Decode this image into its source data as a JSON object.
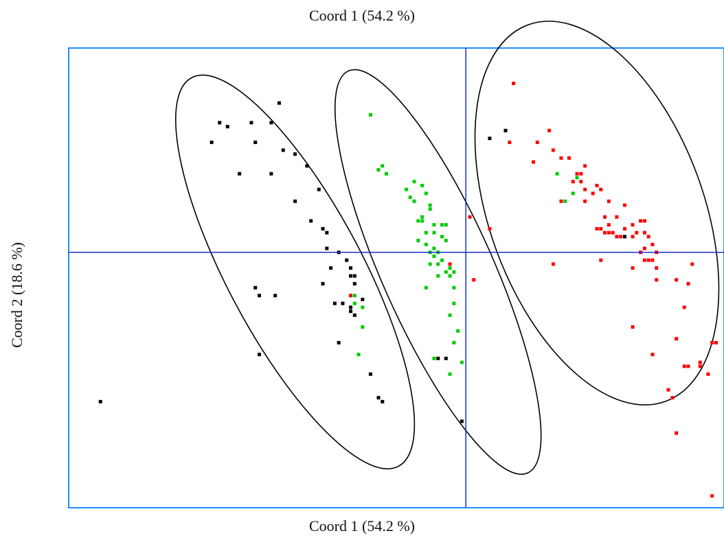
{
  "header": {
    "title": "Coord 1 (54.2 %)"
  },
  "chart_data": {
    "type": "scatter",
    "title": "Coord 1 (54.2 %)",
    "xlabel": "Coord 1 (54.2 %)",
    "ylabel": "Coord 2 (18.6 %)",
    "xlim": [
      -1.0,
      0.65
    ],
    "ylim": [
      -0.65,
      0.52
    ],
    "grid": false,
    "reference_lines": {
      "x": 0,
      "y": 0
    },
    "series": [
      {
        "color": "#000000",
        "points": [
          [
            -0.92,
            -0.38
          ],
          [
            -0.62,
            0.33
          ],
          [
            -0.64,
            0.28
          ],
          [
            -0.6,
            0.32
          ],
          [
            -0.54,
            0.33
          ],
          [
            -0.53,
            0.28
          ],
          [
            -0.57,
            0.2
          ],
          [
            -0.49,
            0.33
          ],
          [
            -0.49,
            0.2
          ],
          [
            -0.47,
            0.38
          ],
          [
            -0.46,
            0.26
          ],
          [
            -0.43,
            0.25
          ],
          [
            -0.4,
            0.22
          ],
          [
            -0.43,
            0.13
          ],
          [
            -0.37,
            0.16
          ],
          [
            -0.39,
            0.08
          ],
          [
            -0.36,
            0.06
          ],
          [
            -0.35,
            0.05
          ],
          [
            -0.35,
            0.01
          ],
          [
            -0.34,
            -0.04
          ],
          [
            -0.32,
            0.0
          ],
          [
            -0.3,
            -0.02
          ],
          [
            -0.29,
            -0.04
          ],
          [
            -0.29,
            -0.06
          ],
          [
            -0.28,
            -0.08
          ],
          [
            -0.28,
            -0.06
          ],
          [
            -0.36,
            -0.08
          ],
          [
            -0.53,
            -0.09
          ],
          [
            -0.52,
            -0.11
          ],
          [
            -0.48,
            -0.11
          ],
          [
            -0.33,
            -0.13
          ],
          [
            -0.31,
            -0.13
          ],
          [
            -0.29,
            -0.14
          ],
          [
            -0.29,
            -0.15
          ],
          [
            -0.28,
            -0.16
          ],
          [
            -0.26,
            -0.12
          ],
          [
            -0.32,
            -0.23
          ],
          [
            -0.52,
            -0.26
          ],
          [
            -0.24,
            -0.31
          ],
          [
            -0.22,
            -0.37
          ],
          [
            -0.21,
            -0.38
          ],
          [
            -0.07,
            -0.27
          ],
          [
            -0.05,
            -0.27
          ],
          [
            -0.01,
            -0.43
          ],
          [
            0.06,
            0.29
          ],
          [
            0.1,
            0.31
          ],
          [
            0.4,
            0.04
          ]
        ]
      },
      {
        "color": "#00cc00",
        "points": [
          [
            -0.24,
            0.35
          ],
          [
            -0.21,
            0.22
          ],
          [
            -0.22,
            0.21
          ],
          [
            -0.2,
            0.2
          ],
          [
            -0.14,
            0.14
          ],
          [
            -0.13,
            0.13
          ],
          [
            -0.11,
            0.09
          ],
          [
            -0.1,
            0.15
          ],
          [
            -0.09,
            0.12
          ],
          [
            -0.11,
            0.08
          ],
          [
            -0.1,
            0.05
          ],
          [
            -0.08,
            0.07
          ],
          [
            -0.12,
            0.03
          ],
          [
            -0.1,
            0.02
          ],
          [
            -0.09,
            0.0
          ],
          [
            -0.08,
            0.01
          ],
          [
            -0.07,
            0.0
          ],
          [
            -0.08,
            -0.01
          ],
          [
            -0.09,
            -0.03
          ],
          [
            -0.07,
            -0.03
          ],
          [
            -0.06,
            -0.02
          ],
          [
            -0.06,
            0.04
          ],
          [
            -0.05,
            0.03
          ],
          [
            -0.04,
            -0.04
          ],
          [
            -0.05,
            -0.05
          ],
          [
            -0.04,
            -0.06
          ],
          [
            -0.03,
            -0.05
          ],
          [
            -0.07,
            -0.06
          ],
          [
            -0.08,
            0.05
          ],
          [
            -0.09,
            0.11
          ],
          [
            -0.11,
            0.17
          ],
          [
            -0.13,
            0.18
          ],
          [
            -0.15,
            0.16
          ],
          [
            -0.05,
            0.07
          ],
          [
            -0.1,
            -0.09
          ],
          [
            -0.03,
            -0.09
          ],
          [
            -0.03,
            -0.13
          ],
          [
            -0.04,
            -0.16
          ],
          [
            -0.02,
            -0.2
          ],
          [
            -0.03,
            -0.23
          ],
          [
            -0.01,
            -0.28
          ],
          [
            -0.04,
            -0.31
          ],
          [
            -0.08,
            -0.27
          ],
          [
            -0.28,
            -0.11
          ],
          [
            -0.28,
            -0.13
          ],
          [
            -0.26,
            -0.14
          ],
          [
            -0.26,
            -0.19
          ],
          [
            -0.27,
            -0.26
          ],
          [
            0.23,
            0.2
          ],
          [
            0.28,
            0.19
          ],
          [
            0.27,
            0.15
          ],
          [
            0.25,
            0.13
          ],
          [
            -0.12,
            0.08
          ],
          [
            -0.06,
            0.07
          ]
        ]
      },
      {
        "color": "#ff0000",
        "points": [
          [
            -0.04,
            -0.03
          ],
          [
            -0.29,
            -0.11
          ],
          [
            0.02,
            -0.07
          ],
          [
            0.01,
            0.09
          ],
          [
            0.06,
            0.06
          ],
          [
            0.11,
            0.28
          ],
          [
            0.18,
            0.28
          ],
          [
            0.21,
            0.31
          ],
          [
            0.22,
            0.26
          ],
          [
            0.24,
            0.24
          ],
          [
            0.26,
            0.24
          ],
          [
            0.28,
            0.2
          ],
          [
            0.27,
            0.18
          ],
          [
            0.3,
            0.16
          ],
          [
            0.3,
            0.13
          ],
          [
            0.29,
            0.18
          ],
          [
            0.32,
            0.15
          ],
          [
            0.33,
            0.17
          ],
          [
            0.34,
            0.16
          ],
          [
            0.36,
            0.13
          ],
          [
            0.35,
            0.09
          ],
          [
            0.36,
            0.07
          ],
          [
            0.33,
            0.06
          ],
          [
            0.34,
            0.06
          ],
          [
            0.35,
            0.05
          ],
          [
            0.36,
            0.05
          ],
          [
            0.37,
            0.05
          ],
          [
            0.38,
            0.04
          ],
          [
            0.39,
            0.04
          ],
          [
            0.4,
            0.06
          ],
          [
            0.42,
            0.07
          ],
          [
            0.43,
            0.05
          ],
          [
            0.44,
            0.08
          ],
          [
            0.45,
            0.08
          ],
          [
            0.45,
            0.05
          ],
          [
            0.46,
            0.04
          ],
          [
            0.38,
            0.09
          ],
          [
            0.4,
            0.12
          ],
          [
            0.42,
            0.04
          ],
          [
            0.45,
            0.01
          ],
          [
            0.44,
            0.0
          ],
          [
            0.47,
            0.02
          ],
          [
            0.48,
            0.0
          ],
          [
            0.47,
            -0.02
          ],
          [
            0.45,
            -0.02
          ],
          [
            0.46,
            -0.02
          ],
          [
            0.48,
            -0.04
          ],
          [
            0.42,
            -0.04
          ],
          [
            0.48,
            -0.07
          ],
          [
            0.53,
            -0.07
          ],
          [
            0.56,
            -0.08
          ],
          [
            0.57,
            -0.03
          ],
          [
            0.55,
            -0.14
          ],
          [
            0.53,
            -0.22
          ],
          [
            0.47,
            -0.26
          ],
          [
            0.42,
            -0.19
          ],
          [
            0.34,
            -0.02
          ],
          [
            0.22,
            -0.03
          ],
          [
            0.51,
            -0.35
          ],
          [
            0.59,
            -0.28
          ],
          [
            0.59,
            -0.29
          ],
          [
            0.61,
            -0.31
          ],
          [
            0.55,
            -0.29
          ],
          [
            0.56,
            -0.29
          ],
          [
            0.52,
            -0.37
          ],
          [
            0.63,
            -0.23
          ],
          [
            0.62,
            -0.23
          ],
          [
            0.53,
            -0.46
          ],
          [
            0.62,
            -0.62
          ],
          [
            0.12,
            0.43
          ],
          [
            0.29,
            0.2
          ],
          [
            0.3,
            0.22
          ],
          [
            0.17,
            0.23
          ],
          [
            0.24,
            0.13
          ]
        ]
      }
    ],
    "ellipses": [
      {
        "color": "#000000",
        "cx": -0.43,
        "cy": -0.05,
        "rx": 0.17,
        "ry": 0.56,
        "angle_deg": -28
      },
      {
        "color": "#000000",
        "cx": -0.07,
        "cy": -0.05,
        "rx": 0.14,
        "ry": 0.56,
        "angle_deg": -24
      },
      {
        "color": "#000000",
        "cx": 0.33,
        "cy": 0.1,
        "rx": 0.27,
        "ry": 0.51,
        "angle_deg": -20
      }
    ]
  }
}
